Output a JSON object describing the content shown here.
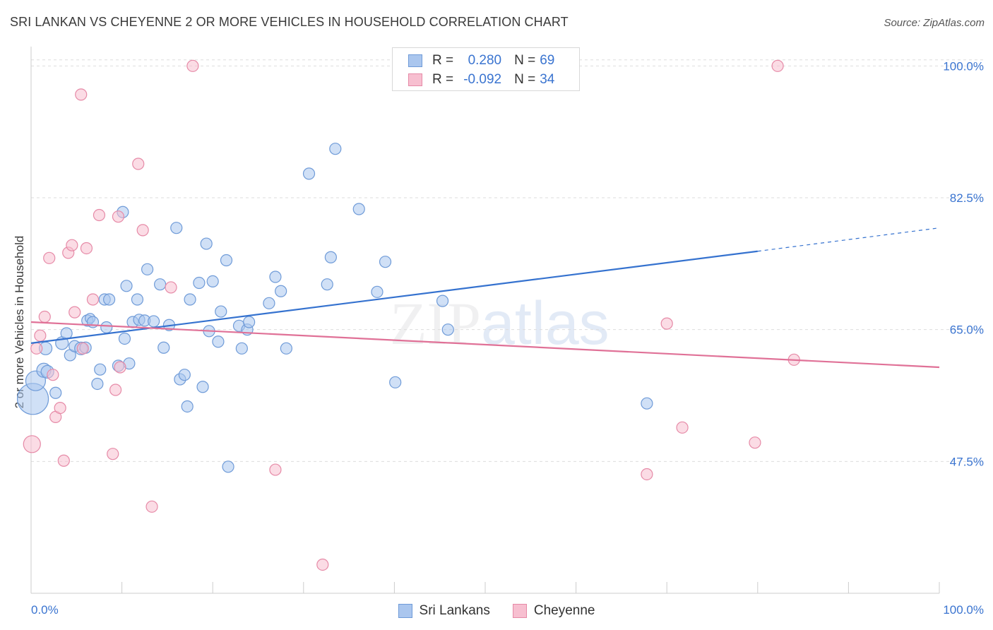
{
  "title": "SRI LANKAN VS CHEYENNE 2 OR MORE VEHICLES IN HOUSEHOLD CORRELATION CHART",
  "source": "Source: ZipAtlas.com",
  "watermark": {
    "zip": "ZIP",
    "atlas": "atlas"
  },
  "legend": {
    "rows": [
      {
        "r_label": "R =",
        "r_value": "0.280",
        "n_label": "N =",
        "n_value": "69"
      },
      {
        "r_label": "R =",
        "r_value": "-0.092",
        "n_label": "N =",
        "n_value": "34"
      }
    ]
  },
  "bottom_legend": [
    "Sri Lankans",
    "Cheyenne"
  ],
  "colors": {
    "blue_fill": "#aac6ee",
    "blue_stroke": "#6f9bd8",
    "blue_line": "#3572cf",
    "pink_fill": "#f7bfd0",
    "pink_stroke": "#e68aa7",
    "pink_line": "#e07197",
    "axis_text": "#3a74d0",
    "grid": "#dddddd"
  },
  "chart_data": {
    "type": "scatter",
    "title": "SRI LANKAN VS CHEYENNE 2 OR MORE VEHICLES IN HOUSEHOLD CORRELATION CHART",
    "xlabel": "",
    "ylabel": "2 or more Vehicles in Household",
    "xlim": [
      0,
      100
    ],
    "ylim": [
      30,
      102
    ],
    "x_tick_labels": [
      "0.0%",
      "100.0%"
    ],
    "y_ticks": [
      47.5,
      65.0,
      82.5,
      100.0
    ],
    "y_tick_labels": [
      "47.5%",
      "65.0%",
      "82.5%",
      "100.0%"
    ],
    "grid": true,
    "series": [
      {
        "name": "Sri Lankans",
        "r": 0.28,
        "n": 69,
        "trend": {
          "x0": 0,
          "y0": 63.2,
          "x1": 80,
          "y1": 75.4,
          "dashed_to_x": 100,
          "dashed_to_y": 78.5
        },
        "points": [
          [
            0.2,
            55.8,
            22
          ],
          [
            0.5,
            58.2,
            14
          ],
          [
            1.4,
            59.6,
            10
          ],
          [
            1.8,
            59.4,
            9
          ],
          [
            1.6,
            62.5,
            9
          ],
          [
            2.7,
            56.6,
            8
          ],
          [
            3.4,
            63.2,
            9
          ],
          [
            3.9,
            64.5,
            8
          ],
          [
            4.3,
            61.6,
            8
          ],
          [
            4.8,
            62.8,
            8
          ],
          [
            5.5,
            62.5,
            9
          ],
          [
            6.0,
            62.6,
            8
          ],
          [
            6.2,
            66.2,
            8
          ],
          [
            6.5,
            66.5,
            7
          ],
          [
            6.8,
            66.0,
            8
          ],
          [
            7.3,
            57.8,
            8
          ],
          [
            7.6,
            59.7,
            8
          ],
          [
            8.1,
            69.0,
            8
          ],
          [
            8.3,
            65.3,
            8
          ],
          [
            8.6,
            69.0,
            8
          ],
          [
            9.6,
            60.2,
            8
          ],
          [
            10.1,
            80.6,
            8
          ],
          [
            10.3,
            63.8,
            8
          ],
          [
            10.5,
            70.8,
            8
          ],
          [
            10.8,
            60.5,
            8
          ],
          [
            11.2,
            66.0,
            8
          ],
          [
            11.7,
            69.0,
            8
          ],
          [
            11.9,
            66.3,
            8
          ],
          [
            12.5,
            66.2,
            8
          ],
          [
            12.8,
            73.0,
            8
          ],
          [
            13.5,
            66.1,
            8
          ],
          [
            14.2,
            71.0,
            8
          ],
          [
            14.6,
            62.6,
            8
          ],
          [
            15.2,
            65.6,
            8
          ],
          [
            16.0,
            78.5,
            8
          ],
          [
            16.4,
            58.4,
            8
          ],
          [
            16.9,
            59.0,
            8
          ],
          [
            17.2,
            54.8,
            8
          ],
          [
            17.5,
            69.0,
            8
          ],
          [
            18.5,
            71.2,
            8
          ],
          [
            18.9,
            57.4,
            8
          ],
          [
            19.3,
            76.4,
            8
          ],
          [
            19.6,
            64.8,
            8
          ],
          [
            20.0,
            71.4,
            8
          ],
          [
            20.6,
            63.4,
            8
          ],
          [
            20.9,
            67.4,
            8
          ],
          [
            21.5,
            74.2,
            8
          ],
          [
            21.7,
            46.8,
            8
          ],
          [
            22.9,
            65.5,
            8
          ],
          [
            23.2,
            62.5,
            8
          ],
          [
            23.8,
            65.0,
            8
          ],
          [
            24.0,
            66.0,
            8
          ],
          [
            26.2,
            68.5,
            8
          ],
          [
            26.9,
            72.0,
            8
          ],
          [
            27.5,
            70.1,
            8
          ],
          [
            28.1,
            62.5,
            8
          ],
          [
            30.6,
            85.7,
            8
          ],
          [
            32.6,
            71.0,
            8
          ],
          [
            33.0,
            74.6,
            8
          ],
          [
            33.5,
            89.0,
            8
          ],
          [
            36.1,
            81.0,
            8
          ],
          [
            38.1,
            70.0,
            8
          ],
          [
            39.0,
            74.0,
            8
          ],
          [
            40.1,
            58.0,
            8
          ],
          [
            45.3,
            68.8,
            8
          ],
          [
            45.9,
            65.0,
            8
          ],
          [
            67.8,
            55.2,
            8
          ]
        ]
      },
      {
        "name": "Cheyenne",
        "r": -0.092,
        "n": 34,
        "trend": {
          "x0": 0,
          "y0": 66.0,
          "x1": 100,
          "y1": 60.0
        },
        "points": [
          [
            0.1,
            49.8,
            12
          ],
          [
            0.6,
            62.5,
            8
          ],
          [
            1.0,
            64.2,
            8
          ],
          [
            1.5,
            66.7,
            8
          ],
          [
            2.0,
            74.5,
            8
          ],
          [
            2.4,
            59.0,
            8
          ],
          [
            2.7,
            53.4,
            8
          ],
          [
            3.2,
            54.6,
            8
          ],
          [
            3.6,
            47.6,
            8
          ],
          [
            4.1,
            75.2,
            8
          ],
          [
            4.5,
            76.2,
            8
          ],
          [
            4.8,
            67.3,
            8
          ],
          [
            5.5,
            96.2,
            8
          ],
          [
            5.7,
            62.5,
            8
          ],
          [
            6.1,
            75.8,
            8
          ],
          [
            6.8,
            69.0,
            8
          ],
          [
            7.5,
            80.2,
            8
          ],
          [
            9.0,
            48.5,
            8
          ],
          [
            9.3,
            57.0,
            8
          ],
          [
            9.6,
            80.0,
            8
          ],
          [
            9.8,
            60.0,
            8
          ],
          [
            11.8,
            87.0,
            8
          ],
          [
            12.3,
            78.2,
            8
          ],
          [
            13.3,
            41.5,
            8
          ],
          [
            15.4,
            70.6,
            8
          ],
          [
            17.8,
            100.0,
            8
          ],
          [
            26.9,
            46.4,
            8
          ],
          [
            32.1,
            33.8,
            8
          ],
          [
            67.8,
            45.8,
            8
          ],
          [
            70.0,
            65.8,
            8
          ],
          [
            71.7,
            52.0,
            8
          ],
          [
            79.7,
            50.0,
            8
          ],
          [
            82.2,
            100.0,
            8
          ],
          [
            84.0,
            61.0,
            8
          ]
        ]
      }
    ]
  }
}
